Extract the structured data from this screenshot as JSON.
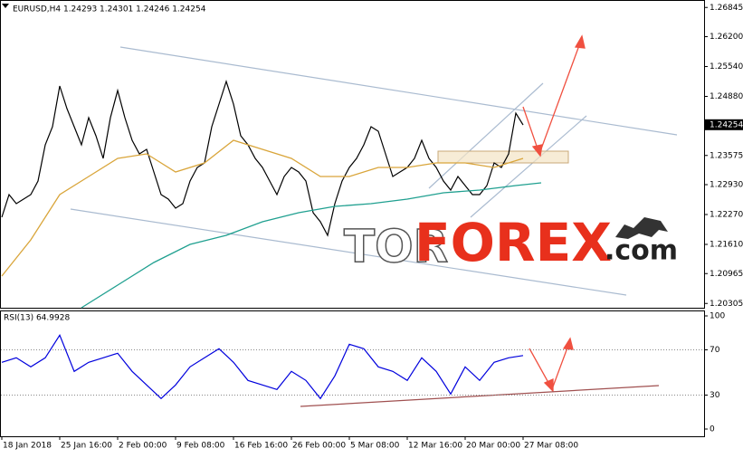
{
  "chart_data": [
    {
      "type": "line",
      "title": "EURUSD,H4  1.24293 1.24301 1.24246 1.24254",
      "watermark": [
        "TOR",
        "FOREX",
        ".com"
      ],
      "xlim": [
        0,
        194
      ],
      "ylim": [
        1.2021,
        1.2701
      ],
      "yticks": [
        1.26845,
        {
          "value": 1.262,
          "label": "1.26200"
        },
        {
          "value": 1.2554,
          "label": "1.25540"
        },
        {
          "value": 1.2488,
          "label": "1.24880"
        },
        1.23575,
        {
          "value": 1.2293,
          "label": "1.22930"
        },
        {
          "value": 1.2227,
          "label": "1.22270"
        },
        {
          "value": 1.2161,
          "label": "1.21610"
        },
        1.20965,
        1.20305
      ],
      "current_price": 1.24254,
      "series": [
        {
          "color": "#000000",
          "x": [
            0,
            2,
            4,
            6,
            8,
            10,
            12,
            14,
            16,
            18,
            20,
            22,
            24,
            26,
            28,
            30,
            32,
            34,
            36,
            38,
            40,
            42,
            44,
            46,
            48,
            50,
            52,
            54,
            56,
            58,
            60,
            62,
            64,
            66,
            68,
            70,
            72,
            74,
            76,
            78,
            80,
            82,
            84,
            86,
            88,
            90,
            92,
            94,
            96,
            98,
            100,
            102,
            104,
            106,
            108,
            110,
            112,
            114,
            116,
            118,
            120,
            122,
            124,
            126,
            128,
            130,
            132,
            134,
            136,
            138,
            140,
            142,
            144
          ],
          "values": [
            1.2221,
            1.2271,
            1.2251,
            1.2261,
            1.2271,
            1.2301,
            1.2381,
            1.2421,
            1.2511,
            1.2461,
            1.2421,
            1.2381,
            1.2441,
            1.2401,
            1.2351,
            1.2441,
            1.2501,
            1.2441,
            1.2391,
            1.2361,
            1.2371,
            1.2321,
            1.2271,
            1.2261,
            1.2241,
            1.2251,
            1.2301,
            1.2331,
            1.2341,
            1.2421,
            1.2471,
            1.2521,
            1.2471,
            1.2401,
            1.2381,
            1.2351,
            1.2331,
            1.2301,
            1.2271,
            1.2311,
            1.2331,
            1.2321,
            1.2301,
            1.2231,
            1.2211,
            1.2181,
            1.2251,
            1.2301,
            1.2331,
            1.2351,
            1.2381,
            1.2421,
            1.2411,
            1.2361,
            1.2311,
            1.2321,
            1.2331,
            1.2351,
            1.2391,
            1.2351,
            1.2331,
            1.2301,
            1.2281,
            1.2311,
            1.2291,
            1.2271,
            1.2271,
            1.2291,
            1.2341,
            1.2331,
            1.2361,
            1.2451,
            1.2425
          ]
        },
        {
          "color": "#d9a53a",
          "x": [
            0,
            8,
            16,
            24,
            32,
            40,
            48,
            56,
            64,
            72,
            80,
            88,
            96,
            104,
            112,
            120,
            128,
            136,
            144
          ],
          "values": [
            1.2091,
            1.2171,
            1.2271,
            1.2311,
            1.2351,
            1.2361,
            1.2321,
            1.2341,
            1.2391,
            1.2371,
            1.2351,
            1.2311,
            1.2311,
            1.2331,
            1.2331,
            1.2341,
            1.2341,
            1.2331,
            1.2351
          ]
        },
        {
          "color": "#20a090",
          "x": [
            22,
            32,
            42,
            52,
            62,
            72,
            82,
            92,
            102,
            112,
            122,
            132,
            142,
            149
          ],
          "values": [
            1.2021,
            1.2071,
            1.2121,
            1.2161,
            1.2181,
            1.2211,
            1.2231,
            1.2245,
            1.2251,
            1.2261,
            1.2275,
            1.2281,
            1.2291,
            1.2297
          ]
        }
      ]
    },
    {
      "type": "line",
      "title": "RSI(13) 64.9928",
      "xlim": [
        0,
        194
      ],
      "ylim": [
        0,
        100
      ],
      "yticks": [
        100,
        70,
        30,
        0
      ],
      "guides": [
        70,
        30
      ],
      "xticks": [
        {
          "value": 0,
          "label": "18 Jan 2018"
        },
        {
          "value": 16,
          "label": "25 Jan 16:00"
        },
        {
          "value": 32,
          "label": "2 Feb 00:00"
        },
        {
          "value": 48,
          "label": "9 Feb 08:00"
        },
        {
          "value": 64,
          "label": "16 Feb 16:00"
        },
        {
          "value": 80,
          "label": "26 Feb 00:00"
        },
        {
          "value": 96,
          "label": "5 Mar 08:00"
        },
        {
          "value": 112,
          "label": "12 Mar 16:00"
        },
        {
          "value": 128,
          "label": "20 Mar 00:00"
        },
        {
          "value": 144,
          "label": "27 Mar 08:00"
        }
      ],
      "series": [
        {
          "color": "#0000dd",
          "x": [
            0,
            4,
            8,
            12,
            16,
            20,
            24,
            28,
            32,
            36,
            40,
            44,
            48,
            52,
            56,
            60,
            64,
            68,
            72,
            76,
            80,
            84,
            88,
            92,
            96,
            100,
            104,
            108,
            112,
            116,
            120,
            124,
            128,
            132,
            136,
            140,
            144
          ],
          "values": [
            59,
            63,
            55,
            63,
            83,
            51,
            59,
            63,
            67,
            51,
            39,
            27,
            39,
            55,
            63,
            71,
            59,
            43,
            39,
            35,
            51,
            43,
            27,
            47,
            75,
            71,
            55,
            51,
            43,
            63,
            51,
            31,
            55,
            43,
            59,
            63,
            65
          ]
        }
      ]
    }
  ]
}
